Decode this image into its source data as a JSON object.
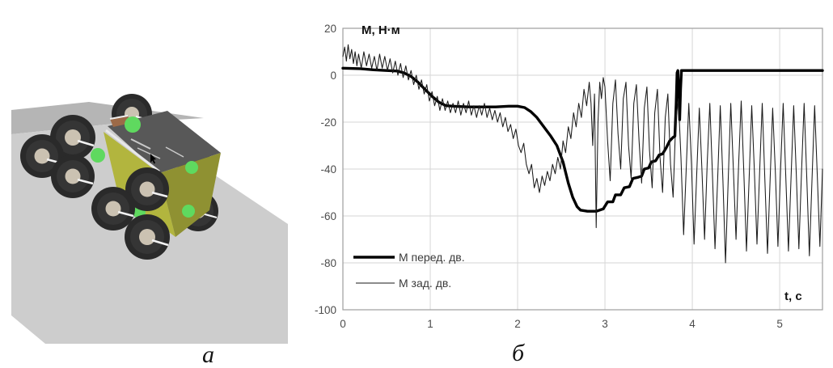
{
  "captions": {
    "left": "а",
    "right": "б"
  },
  "scene": {
    "description_names": [
      "terrain-slope",
      "eight-wheel-rover",
      "wheels",
      "green-wheel-mounts"
    ],
    "colors": {
      "terrain_light": "#cdcdcd",
      "terrain_dark": "#b5b5b5",
      "body_yellow": "#b2b53e",
      "body_olive": "#8f9132",
      "body_top_gray": "#585858",
      "wheel_dark": "#2a2a2a",
      "wheel_hub": "#cbc2b2",
      "mount_green": "#5fd95f",
      "box_brown": "#9c6a48"
    }
  },
  "chart_data": {
    "type": "line",
    "title": "",
    "ylabel": "М, Н·м",
    "xlabel": "t, c",
    "xlim": [
      0,
      5.49
    ],
    "ylim": [
      -100,
      20
    ],
    "xticks": [
      0,
      1,
      2,
      3,
      4,
      5
    ],
    "yticks": [
      20,
      0,
      -20,
      -40,
      -60,
      -80,
      -100
    ],
    "grid": true,
    "legend_position": "inside-bottom-left",
    "series": [
      {
        "name": "М перед. дв.",
        "style": "thick",
        "color": "#000000",
        "points": [
          [
            0,
            3
          ],
          [
            0.2,
            2.8
          ],
          [
            0.35,
            2.3
          ],
          [
            0.5,
            2
          ],
          [
            0.62,
            1.8
          ],
          [
            0.7,
            1
          ],
          [
            0.78,
            -0.5
          ],
          [
            0.86,
            -3
          ],
          [
            0.94,
            -6
          ],
          [
            1.02,
            -9
          ],
          [
            1.1,
            -11.5
          ],
          [
            1.18,
            -13
          ],
          [
            1.3,
            -13.3
          ],
          [
            1.45,
            -13.5
          ],
          [
            1.6,
            -13.5
          ],
          [
            1.75,
            -13.5
          ],
          [
            1.9,
            -13.2
          ],
          [
            2.0,
            -13.2
          ],
          [
            2.08,
            -13.8
          ],
          [
            2.15,
            -15.5
          ],
          [
            2.22,
            -18
          ],
          [
            2.3,
            -22
          ],
          [
            2.38,
            -26
          ],
          [
            2.45,
            -30
          ],
          [
            2.52,
            -37
          ],
          [
            2.58,
            -46
          ],
          [
            2.63,
            -52
          ],
          [
            2.68,
            -56
          ],
          [
            2.72,
            -57.5
          ],
          [
            2.8,
            -58
          ],
          [
            2.9,
            -58
          ],
          [
            2.98,
            -57
          ],
          [
            3.03,
            -54
          ],
          [
            3.09,
            -54
          ],
          [
            3.12,
            -51
          ],
          [
            3.18,
            -51
          ],
          [
            3.22,
            -48
          ],
          [
            3.28,
            -47.5
          ],
          [
            3.32,
            -44
          ],
          [
            3.38,
            -43.5
          ],
          [
            3.42,
            -43
          ],
          [
            3.45,
            -40
          ],
          [
            3.5,
            -39.5
          ],
          [
            3.53,
            -37
          ],
          [
            3.58,
            -36.5
          ],
          [
            3.62,
            -34
          ],
          [
            3.66,
            -33.5
          ],
          [
            3.7,
            -31
          ],
          [
            3.74,
            -28
          ],
          [
            3.78,
            -26.5
          ],
          [
            3.8,
            -26
          ],
          [
            3.815,
            -12
          ],
          [
            3.825,
            1
          ],
          [
            3.835,
            2
          ],
          [
            3.845,
            -8
          ],
          [
            3.855,
            -19
          ],
          [
            3.865,
            -6
          ],
          [
            3.875,
            2
          ],
          [
            3.9,
            2
          ],
          [
            4.2,
            2
          ],
          [
            4.6,
            2
          ],
          [
            5.0,
            2
          ],
          [
            5.49,
            2
          ]
        ]
      },
      {
        "name": "М зад. дв.",
        "style": "thin",
        "color": "#1a1a1a",
        "points": [
          [
            0,
            8
          ],
          [
            0.02,
            12
          ],
          [
            0.04,
            6
          ],
          [
            0.06,
            13
          ],
          [
            0.08,
            7
          ],
          [
            0.1,
            11
          ],
          [
            0.12,
            5
          ],
          [
            0.14,
            10
          ],
          [
            0.16,
            4
          ],
          [
            0.18,
            9
          ],
          [
            0.21,
            3
          ],
          [
            0.24,
            10
          ],
          [
            0.27,
            4
          ],
          [
            0.3,
            9
          ],
          [
            0.33,
            3
          ],
          [
            0.36,
            8
          ],
          [
            0.39,
            2
          ],
          [
            0.42,
            9
          ],
          [
            0.45,
            3
          ],
          [
            0.48,
            8
          ],
          [
            0.51,
            2
          ],
          [
            0.54,
            7
          ],
          [
            0.57,
            1
          ],
          [
            0.6,
            6
          ],
          [
            0.63,
            0
          ],
          [
            0.66,
            5
          ],
          [
            0.69,
            -1
          ],
          [
            0.72,
            4
          ],
          [
            0.75,
            -2
          ],
          [
            0.78,
            2
          ],
          [
            0.81,
            -4
          ],
          [
            0.84,
            0
          ],
          [
            0.87,
            -6
          ],
          [
            0.9,
            -2
          ],
          [
            0.93,
            -8
          ],
          [
            0.96,
            -4
          ],
          [
            0.99,
            -11
          ],
          [
            1.02,
            -7
          ],
          [
            1.05,
            -13
          ],
          [
            1.08,
            -9
          ],
          [
            1.11,
            -15
          ],
          [
            1.14,
            -10
          ],
          [
            1.17,
            -15
          ],
          [
            1.2,
            -11
          ],
          [
            1.23,
            -16
          ],
          [
            1.26,
            -12
          ],
          [
            1.29,
            -16
          ],
          [
            1.32,
            -11
          ],
          [
            1.35,
            -17
          ],
          [
            1.38,
            -12
          ],
          [
            1.41,
            -16
          ],
          [
            1.44,
            -11
          ],
          [
            1.47,
            -17
          ],
          [
            1.5,
            -13
          ],
          [
            1.53,
            -18
          ],
          [
            1.56,
            -13
          ],
          [
            1.59,
            -17
          ],
          [
            1.62,
            -12
          ],
          [
            1.65,
            -18
          ],
          [
            1.68,
            -14
          ],
          [
            1.71,
            -19
          ],
          [
            1.74,
            -15
          ],
          [
            1.77,
            -20
          ],
          [
            1.8,
            -16
          ],
          [
            1.83,
            -22
          ],
          [
            1.86,
            -18
          ],
          [
            1.89,
            -24
          ],
          [
            1.92,
            -21
          ],
          [
            1.95,
            -27
          ],
          [
            1.98,
            -23
          ],
          [
            2.01,
            -30
          ],
          [
            2.04,
            -33
          ],
          [
            2.07,
            -29
          ],
          [
            2.1,
            -38
          ],
          [
            2.13,
            -42
          ],
          [
            2.16,
            -38
          ],
          [
            2.19,
            -48
          ],
          [
            2.22,
            -44
          ],
          [
            2.25,
            -50
          ],
          [
            2.28,
            -43
          ],
          [
            2.31,
            -47
          ],
          [
            2.34,
            -41
          ],
          [
            2.37,
            -45
          ],
          [
            2.4,
            -38
          ],
          [
            2.43,
            -42
          ],
          [
            2.46,
            -35
          ],
          [
            2.49,
            -40
          ],
          [
            2.52,
            -28
          ],
          [
            2.55,
            -33
          ],
          [
            2.58,
            -22
          ],
          [
            2.61,
            -27
          ],
          [
            2.64,
            -16
          ],
          [
            2.67,
            -22
          ],
          [
            2.7,
            -12
          ],
          [
            2.73,
            -18
          ],
          [
            2.76,
            -6
          ],
          [
            2.79,
            -13
          ],
          [
            2.82,
            -3
          ],
          [
            2.84,
            -12
          ],
          [
            2.86,
            -30
          ],
          [
            2.88,
            -8
          ],
          [
            2.9,
            -65
          ],
          [
            2.92,
            -20
          ],
          [
            2.94,
            -3
          ],
          [
            2.96,
            -10
          ],
          [
            2.98,
            -1
          ],
          [
            3.0,
            -5
          ],
          [
            3.03,
            -28
          ],
          [
            3.06,
            -45
          ],
          [
            3.09,
            -12
          ],
          [
            3.12,
            -2
          ],
          [
            3.15,
            -25
          ],
          [
            3.18,
            -40
          ],
          [
            3.21,
            -10
          ],
          [
            3.24,
            -3
          ],
          [
            3.27,
            -30
          ],
          [
            3.3,
            -44
          ],
          [
            3.33,
            -12
          ],
          [
            3.36,
            -4
          ],
          [
            3.39,
            -28
          ],
          [
            3.42,
            -46
          ],
          [
            3.45,
            -14
          ],
          [
            3.48,
            -5
          ],
          [
            3.51,
            -32
          ],
          [
            3.54,
            -48
          ],
          [
            3.57,
            -16
          ],
          [
            3.6,
            -6
          ],
          [
            3.63,
            -35
          ],
          [
            3.66,
            -50
          ],
          [
            3.69,
            -18
          ],
          [
            3.72,
            -8
          ],
          [
            3.75,
            -38
          ],
          [
            3.78,
            -52
          ],
          [
            3.81,
            -20
          ],
          [
            3.84,
            -10
          ],
          [
            3.87,
            -35
          ],
          [
            3.9,
            -68
          ],
          [
            3.93,
            -40
          ],
          [
            3.96,
            -12
          ],
          [
            3.99,
            -38
          ],
          [
            4.02,
            -72
          ],
          [
            4.05,
            -42
          ],
          [
            4.08,
            -14
          ],
          [
            4.11,
            -40
          ],
          [
            4.14,
            -70
          ],
          [
            4.17,
            -38
          ],
          [
            4.2,
            -12
          ],
          [
            4.23,
            -42
          ],
          [
            4.26,
            -74
          ],
          [
            4.29,
            -44
          ],
          [
            4.32,
            -13
          ],
          [
            4.35,
            -45
          ],
          [
            4.38,
            -80
          ],
          [
            4.41,
            -46
          ],
          [
            4.44,
            -12
          ],
          [
            4.47,
            -40
          ],
          [
            4.5,
            -70
          ],
          [
            4.53,
            -38
          ],
          [
            4.56,
            -11
          ],
          [
            4.59,
            -42
          ],
          [
            4.62,
            -75
          ],
          [
            4.65,
            -44
          ],
          [
            4.68,
            -13
          ],
          [
            4.71,
            -40
          ],
          [
            4.74,
            -72
          ],
          [
            4.77,
            -42
          ],
          [
            4.8,
            -12
          ],
          [
            4.83,
            -44
          ],
          [
            4.86,
            -76
          ],
          [
            4.89,
            -45
          ],
          [
            4.92,
            -14
          ],
          [
            4.95,
            -41
          ],
          [
            4.98,
            -73
          ],
          [
            5.01,
            -40
          ],
          [
            5.04,
            -12
          ],
          [
            5.07,
            -43
          ],
          [
            5.1,
            -75
          ],
          [
            5.13,
            -44
          ],
          [
            5.16,
            -13
          ],
          [
            5.19,
            -42
          ],
          [
            5.22,
            -74
          ],
          [
            5.25,
            -41
          ],
          [
            5.28,
            -12
          ],
          [
            5.31,
            -44
          ],
          [
            5.34,
            -77
          ],
          [
            5.37,
            -45
          ],
          [
            5.4,
            -13
          ],
          [
            5.43,
            -42
          ],
          [
            5.46,
            -73
          ],
          [
            5.49,
            -40
          ]
        ]
      }
    ]
  }
}
